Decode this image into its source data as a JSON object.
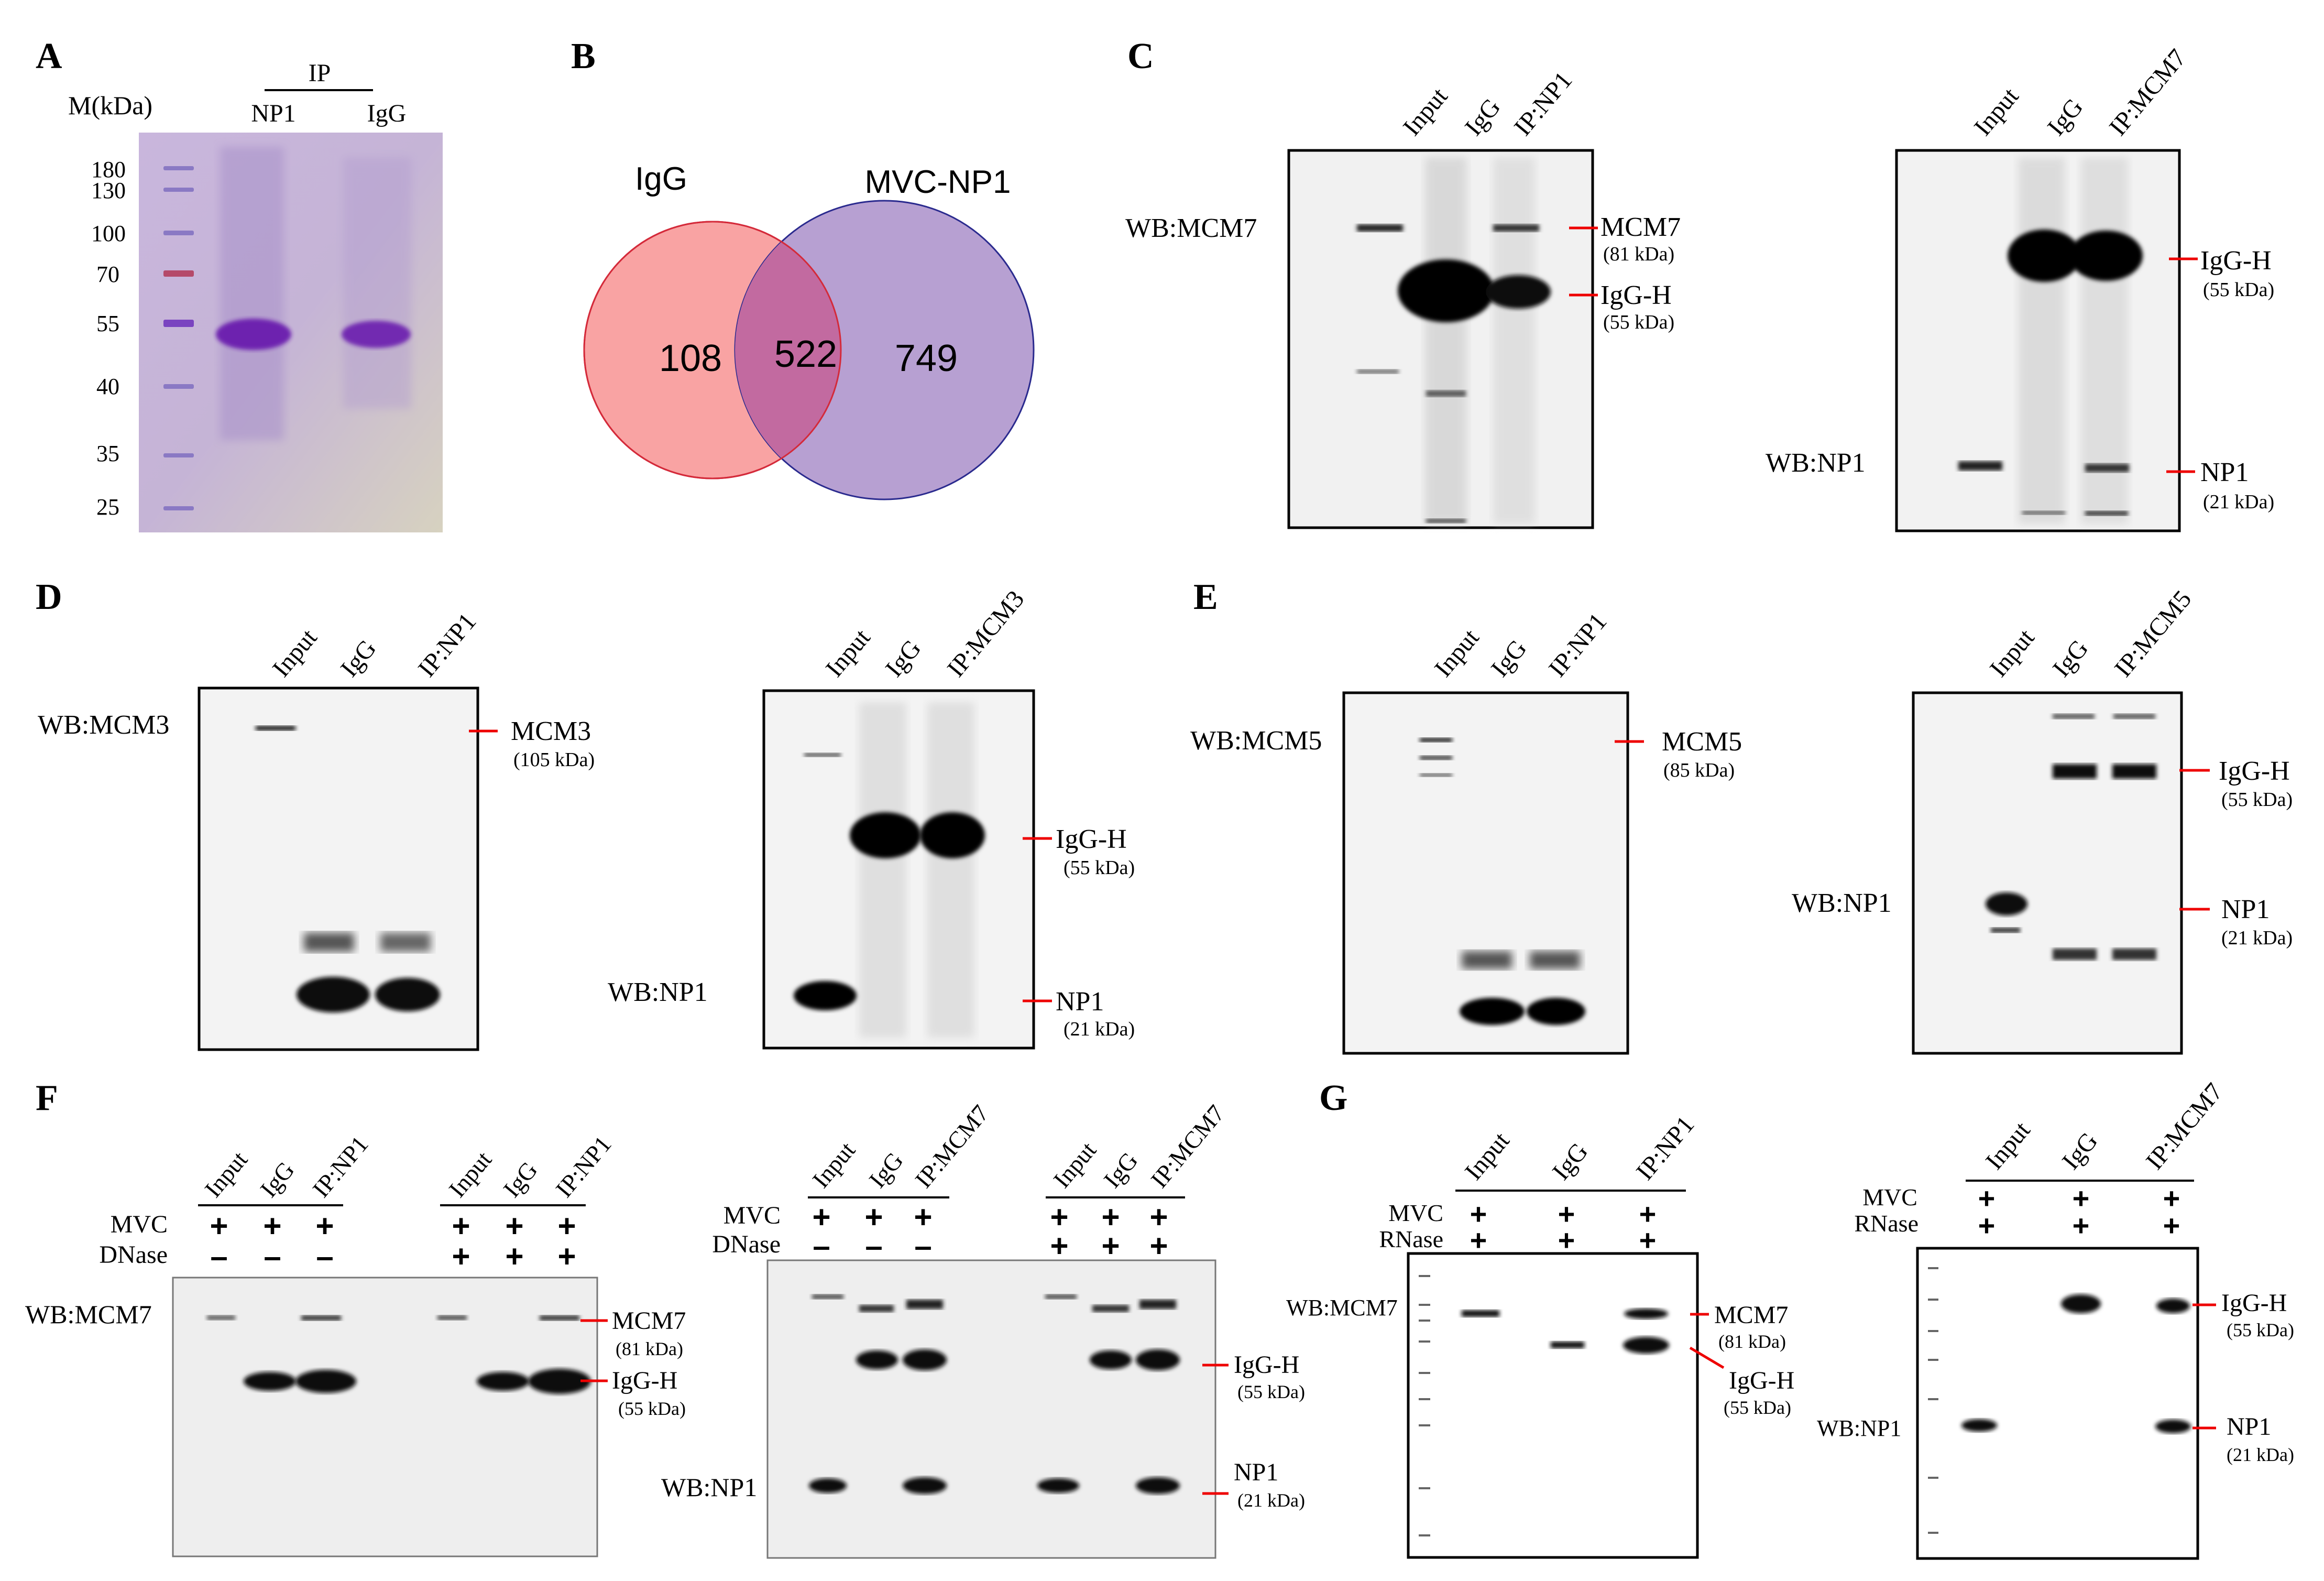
{
  "panels": {
    "A": {
      "letter": "A",
      "marker_header": "M(kDa)",
      "ip_header": "IP",
      "lanes": [
        "NP1",
        "IgG"
      ],
      "markers": [
        "180",
        "130",
        "100",
        "70",
        "55",
        "40",
        "35",
        "25"
      ]
    },
    "B": {
      "letter": "B",
      "set_left": "IgG",
      "set_right": "MVC-NP1",
      "only_left": "108",
      "overlap": "522",
      "only_right": "749",
      "color_left": "#f9a3a3",
      "color_right": "#b7a0d2",
      "color_overlap": "#c26aa0"
    },
    "C": {
      "letter": "C",
      "left": {
        "lanes": [
          "Input",
          "IgG",
          "IP:NP1"
        ],
        "wb": "WB:MCM7",
        "bands": [
          {
            "name": "MCM7",
            "size": "(81 kDa)"
          },
          {
            "name": "IgG-H",
            "size": "(55 kDa)"
          }
        ]
      },
      "right": {
        "lanes": [
          "Input",
          "IgG",
          "IP:MCM7"
        ],
        "wb": "WB:NP1",
        "bands": [
          {
            "name": "IgG-H",
            "size": "(55 kDa)"
          },
          {
            "name": "NP1",
            "size": "(21 kDa)"
          }
        ]
      }
    },
    "D": {
      "letter": "D",
      "left": {
        "lanes": [
          "Input",
          "IgG",
          "IP:NP1"
        ],
        "wb": "WB:MCM3",
        "bands": [
          {
            "name": "MCM3",
            "size": "(105 kDa)"
          }
        ]
      },
      "right": {
        "lanes": [
          "Input",
          "IgG",
          "IP:MCM3"
        ],
        "wb": "WB:NP1",
        "bands": [
          {
            "name": "IgG-H",
            "size": "(55 kDa)"
          },
          {
            "name": "NP1",
            "size": "(21 kDa)"
          }
        ]
      }
    },
    "E": {
      "letter": "E",
      "left": {
        "lanes": [
          "Input",
          "IgG",
          "IP:NP1"
        ],
        "wb": "WB:MCM5",
        "bands": [
          {
            "name": "MCM5",
            "size": "(85 kDa)"
          }
        ]
      },
      "right": {
        "lanes": [
          "Input",
          "IgG",
          "IP:MCM5"
        ],
        "wb": "WB:NP1",
        "bands": [
          {
            "name": "IgG-H",
            "size": "(55 kDa)"
          },
          {
            "name": "NP1",
            "size": "(21 kDa)"
          }
        ]
      }
    },
    "F": {
      "letter": "F",
      "left": {
        "lanes": [
          "Input",
          "IgG",
          "IP:NP1",
          "Input",
          "IgG",
          "IP:NP1"
        ],
        "row1": "MVC",
        "row2": "DNase",
        "row1_marks": [
          "+",
          "+",
          "+",
          "+",
          "+",
          "+"
        ],
        "row2_marks": [
          "–",
          "–",
          "–",
          "+",
          "+",
          "+"
        ],
        "wb": "WB:MCM7",
        "bands": [
          {
            "name": "MCM7",
            "size": "(81 kDa)"
          },
          {
            "name": "IgG-H",
            "size": "(55 kDa)"
          }
        ]
      },
      "right": {
        "lanes": [
          "Input",
          "IgG",
          "IP:MCM7",
          "Input",
          "IgG",
          "IP:MCM7"
        ],
        "row1": "MVC",
        "row2": "DNase",
        "row1_marks": [
          "+",
          "+",
          "+",
          "+",
          "+",
          "+"
        ],
        "row2_marks": [
          "–",
          "–",
          "–",
          "+",
          "+",
          "+"
        ],
        "wb": "WB:NP1",
        "bands": [
          {
            "name": "IgG-H",
            "size": "(55 kDa)"
          },
          {
            "name": "NP1",
            "size": "(21 kDa)"
          }
        ]
      }
    },
    "G": {
      "letter": "G",
      "left": {
        "lanes": [
          "Input",
          "IgG",
          "IP:NP1"
        ],
        "row1": "MVC",
        "row2": "RNase",
        "row1_marks": [
          "+",
          "+",
          "+"
        ],
        "row2_marks": [
          "+",
          "+",
          "+"
        ],
        "wb": "WB:MCM7",
        "bands": [
          {
            "name": "MCM7",
            "size": "(81 kDa)"
          },
          {
            "name": "IgG-H",
            "size": "(55 kDa)"
          }
        ]
      },
      "right": {
        "lanes": [
          "Input",
          "IgG",
          "IP:MCM7"
        ],
        "row1": "MVC",
        "row2": "RNase",
        "row1_marks": [
          "+",
          "+",
          "+"
        ],
        "row2_marks": [
          "+",
          "+",
          "+"
        ],
        "wb": "WB:NP1",
        "bands": [
          {
            "name": "IgG-H",
            "size": "(55 kDa)"
          },
          {
            "name": "NP1",
            "size": "(21 kDa)"
          }
        ]
      }
    }
  }
}
